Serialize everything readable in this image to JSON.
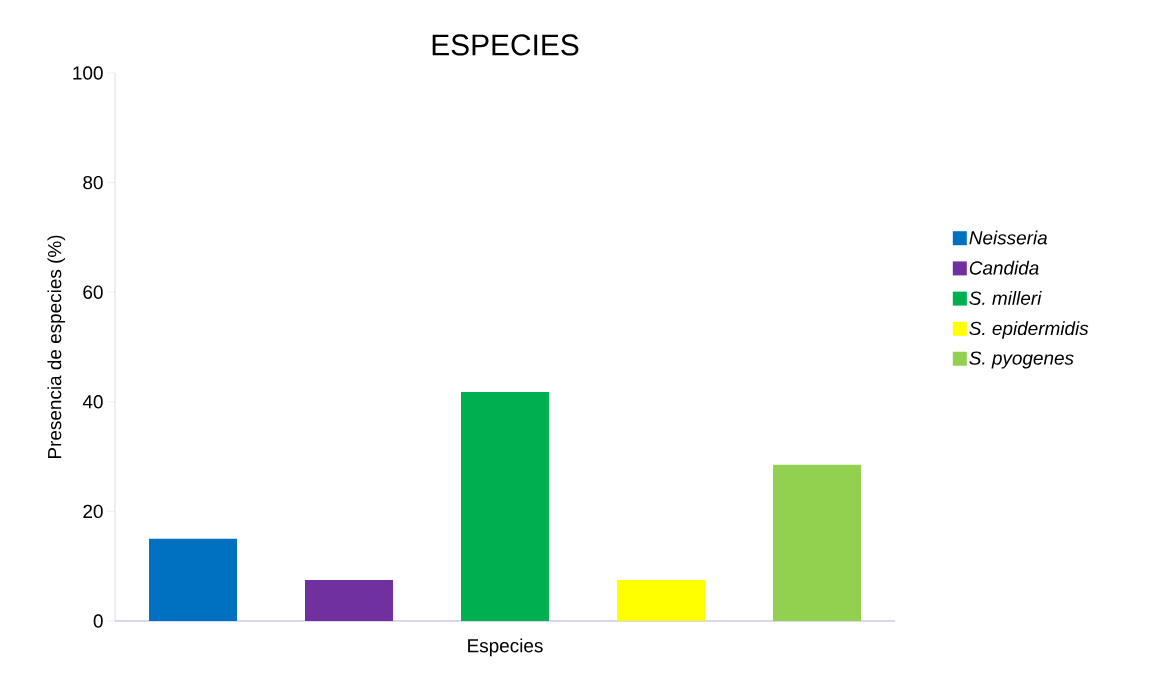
{
  "chart_data": {
    "type": "bar",
    "title": "ESPECIES",
    "xlabel": "Especies",
    "ylabel": "Presencia de especies (%)",
    "categories": [
      null,
      null,
      null,
      null,
      null
    ],
    "series": [
      {
        "name": "Neisseria",
        "color": "#0070c0",
        "values": [
          15,
          null,
          null,
          null,
          null
        ]
      },
      {
        "name": "Candida",
        "color": "#7030a0",
        "values": [
          null,
          7.5,
          null,
          null,
          null
        ]
      },
      {
        "name": "S. milleri",
        "color": "#00b050",
        "values": [
          null,
          null,
          41.8,
          null,
          null
        ]
      },
      {
        "name": "S. epidermidis",
        "color": "#ffff00",
        "values": [
          null,
          null,
          null,
          7.5,
          null
        ]
      },
      {
        "name": "S. pyogenes",
        "color": "#92d050",
        "values": [
          null,
          null,
          null,
          null,
          28.5
        ]
      }
    ],
    "ylim": [
      0,
      100
    ],
    "yticks": [
      0,
      20,
      40,
      60,
      80,
      100
    ],
    "legend": "right",
    "grid": false
  }
}
